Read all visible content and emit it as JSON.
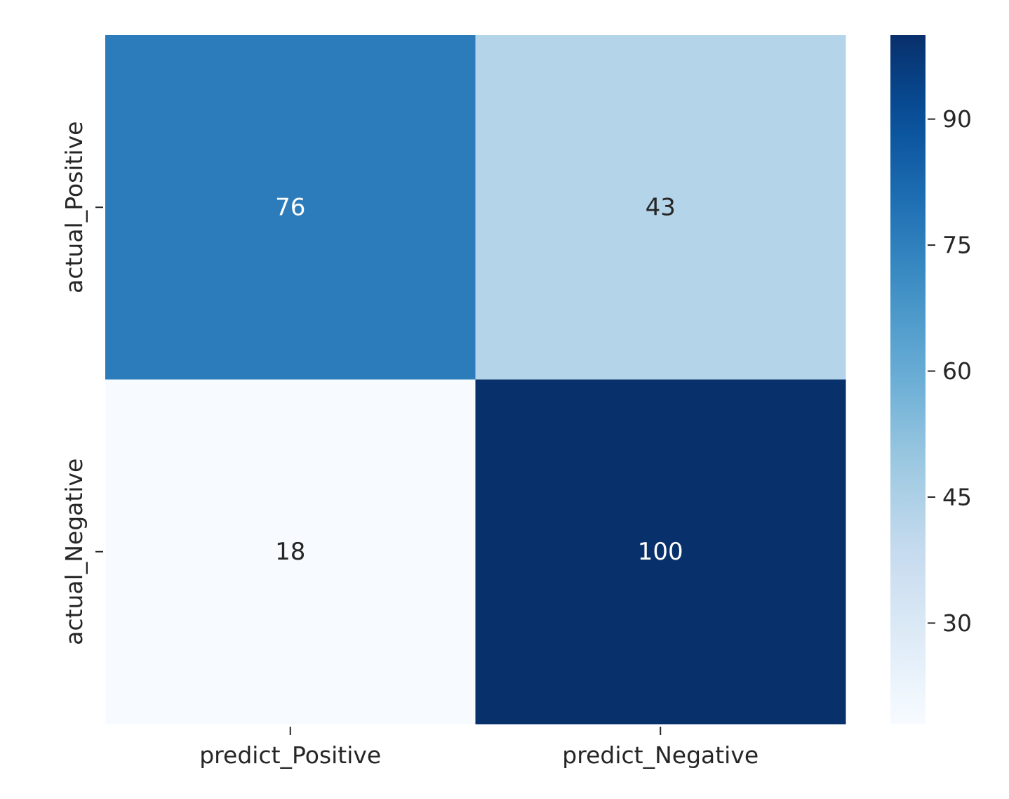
{
  "chart_data": {
    "type": "heatmap",
    "title": "",
    "xlabel": "",
    "ylabel": "",
    "x_categories": [
      "predict_Positive",
      "predict_Negative"
    ],
    "y_categories": [
      "actual_Positive",
      "actual_Negative"
    ],
    "values": [
      [
        76,
        43
      ],
      [
        18,
        100
      ]
    ],
    "colorbar": {
      "vmin": 18,
      "vmax": 100,
      "ticks": [
        30,
        45,
        60,
        75,
        90
      ],
      "colormap": "Blues"
    },
    "colors": {
      "low": "#f7fbff",
      "high": "#08306b",
      "annotation_light": "#ffffff",
      "annotation_dark": "#262626",
      "tick": "#262626"
    }
  }
}
